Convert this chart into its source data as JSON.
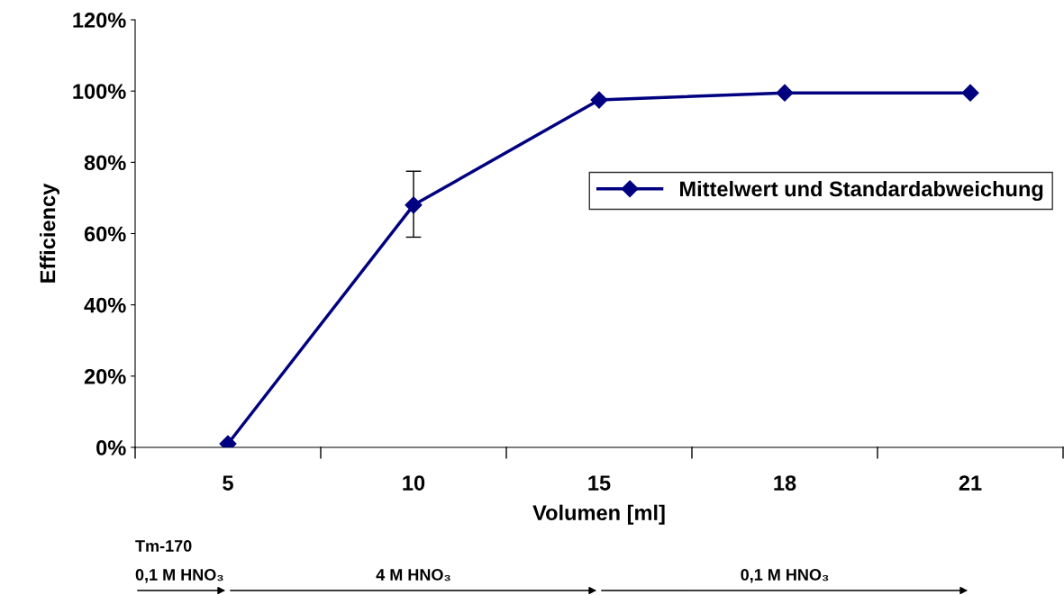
{
  "chart_data": {
    "type": "line",
    "xlabel": "Volumen [ml]",
    "ylabel": "Efficiency",
    "categories": [
      "5",
      "10",
      "15",
      "18",
      "21"
    ],
    "series": [
      {
        "name": "Mittelwert und Standardabweichung",
        "color": "#000080",
        "values": [
          1,
          68,
          97.5,
          99.5,
          99.5
        ],
        "errors": [
          null,
          [
            59,
            77.5
          ],
          null,
          null,
          null
        ]
      }
    ],
    "ylim": [
      0,
      120
    ],
    "yticks": [
      {
        "value": 0,
        "label": "0%"
      },
      {
        "value": 20,
        "label": "20%"
      },
      {
        "value": 40,
        "label": "40%"
      },
      {
        "value": 60,
        "label": "60%"
      },
      {
        "value": 80,
        "label": "80%"
      },
      {
        "value": 100,
        "label": "100%"
      },
      {
        "value": 120,
        "label": "120%"
      }
    ],
    "grid": false,
    "legend": "right",
    "marker": "diamond",
    "line_style": "solid",
    "annotations": [
      "Tm-170",
      "0,1 M HNO₃",
      "4 M HNO₃",
      "0,1 M HNO₃"
    ]
  }
}
